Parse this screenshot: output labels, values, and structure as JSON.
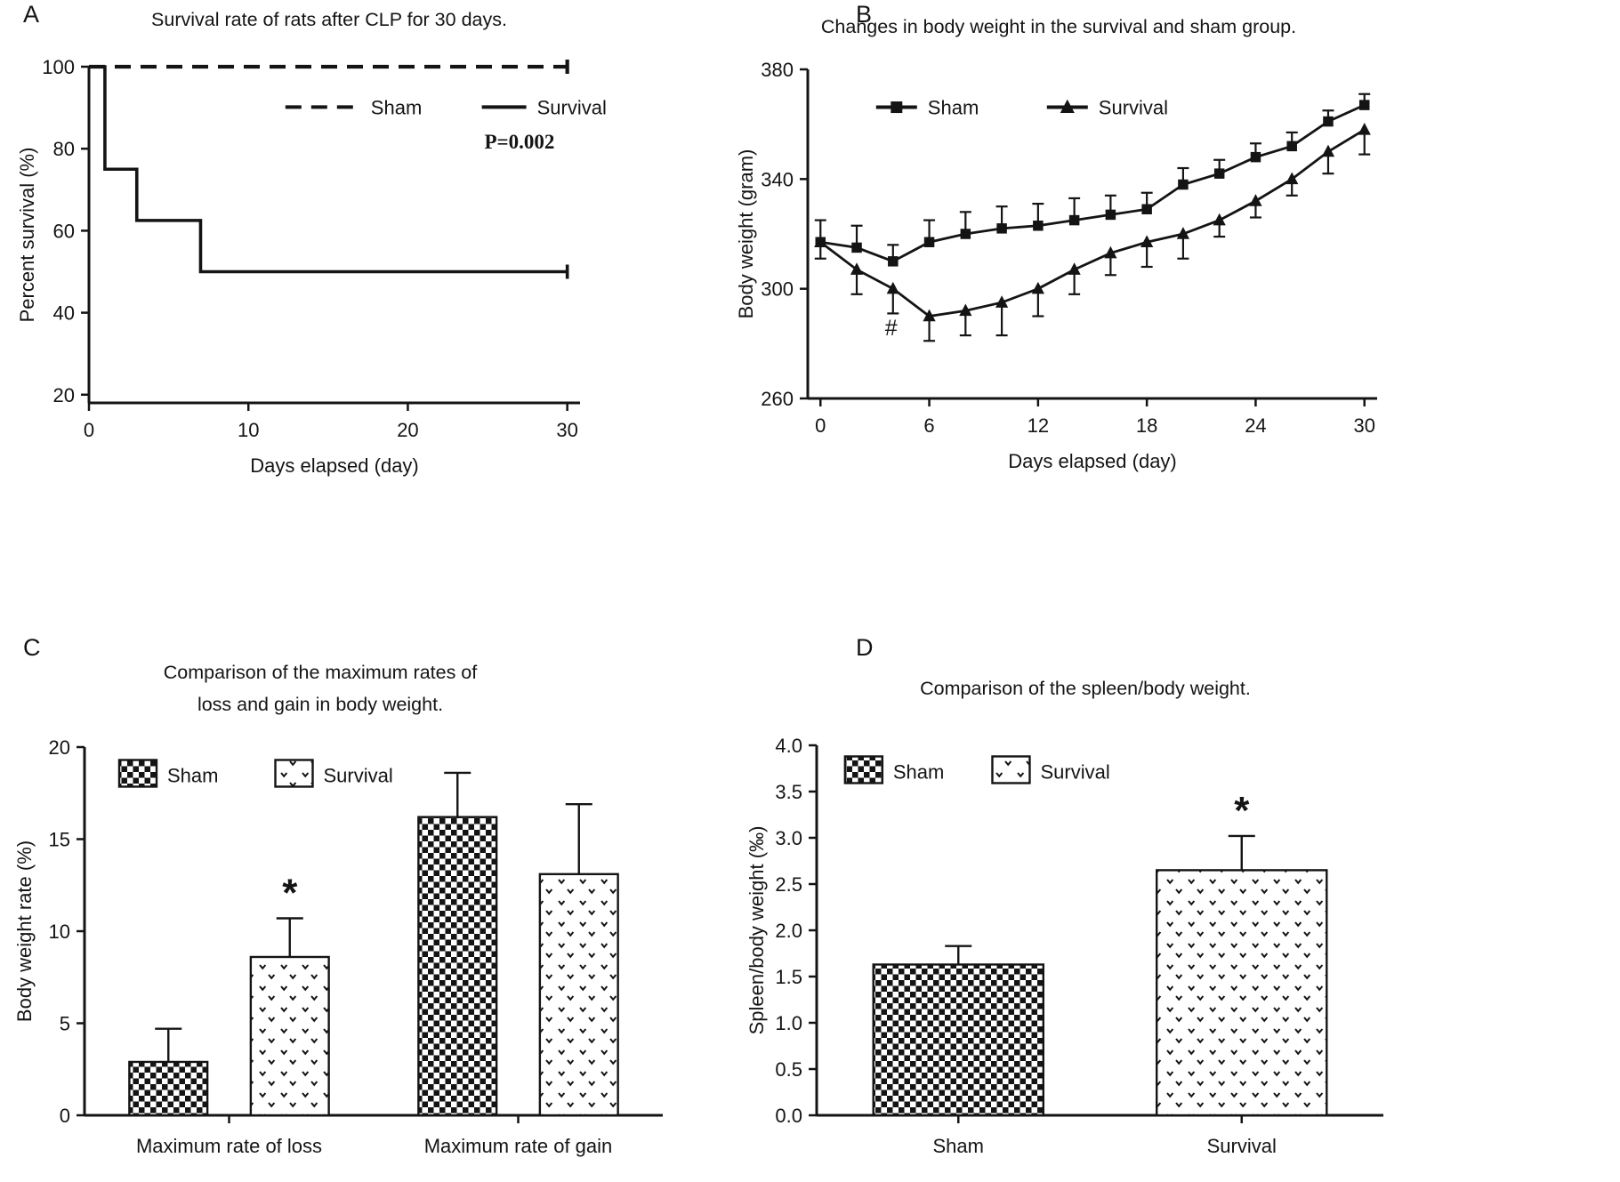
{
  "figure": {
    "background": "#ffffff",
    "ink": "#141414",
    "description": "Four-panel scientific figure (A-D) on CLP sepsis rat study"
  },
  "chart_data": [
    {
      "panel": "A",
      "type": "line",
      "title": "Survival rate of rats after CLP for 30 days.",
      "xlabel": "Days elapsed (day)",
      "ylabel": "Percent survival (%)",
      "xlim": [
        0,
        30.8
      ],
      "ylim": [
        18,
        100
      ],
      "xticks": [
        0,
        10,
        20,
        30
      ],
      "yticks": [
        20,
        40,
        60,
        80,
        100
      ],
      "ytick_labels": [
        "20",
        "40",
        "60",
        "80",
        "100"
      ],
      "grid": false,
      "legend_position": "inside-top",
      "legend": [
        {
          "label": "Sham",
          "dash": "18 11",
          "sw": 84,
          "fx": 0.4,
          "fy": 0.12
        },
        {
          "label": "Survival",
          "dash": "",
          "sw": 50,
          "fx": 0.8,
          "fy": 0.12
        }
      ],
      "annotations": [
        {
          "text": "P=0.002",
          "x": 27,
          "y": 80,
          "bold": true,
          "serif": true,
          "size": 23
        }
      ],
      "series": [
        {
          "name": "Sham",
          "dash": "18 11",
          "width": 4.2,
          "step": false,
          "end_tick": true,
          "x": [
            0,
            30
          ],
          "y": [
            100,
            100
          ]
        },
        {
          "name": "Survival",
          "dash": "",
          "width": 3.6,
          "step": true,
          "end_tick": true,
          "x": [
            0,
            1,
            3,
            7,
            30
          ],
          "y": [
            100,
            75,
            62.5,
            50,
            50
          ]
        }
      ]
    },
    {
      "panel": "B",
      "type": "line",
      "title": "Changes in body weight in the survival and sham group.",
      "xlabel": "Days elapsed (day)",
      "ylabel": "Body weight (gram)",
      "xlim": [
        -0.7,
        30.7
      ],
      "ylim": [
        260,
        380
      ],
      "xticks": [
        0,
        6,
        12,
        18,
        24,
        30
      ],
      "yticks": [
        260,
        300,
        340,
        380
      ],
      "ytick_labels": [
        "260",
        "300",
        "340",
        "380"
      ],
      "grid": false,
      "legend_position": "inside-top",
      "legend": [
        {
          "label": "Sham",
          "marker": "square",
          "dash": "",
          "sw": 46,
          "fx": 0.12,
          "fy": 0.115
        },
        {
          "label": "Survival",
          "marker": "triangle",
          "dash": "",
          "sw": 46,
          "fx": 0.42,
          "fy": 0.115
        }
      ],
      "annotations": [
        {
          "text": "#",
          "x": 3.9,
          "y": 283,
          "bold": false,
          "serif": false,
          "size": 25
        }
      ],
      "series": [
        {
          "name": "Sham",
          "marker": "square",
          "width": 2.8,
          "err_dir": "up",
          "x": [
            0,
            2,
            4,
            6,
            8,
            10,
            12,
            14,
            16,
            18,
            20,
            22,
            24,
            26,
            28,
            30
          ],
          "y": [
            317,
            315,
            310,
            317,
            320,
            322,
            323,
            325,
            327,
            329,
            338,
            342,
            348,
            352,
            361,
            367
          ],
          "err": [
            8,
            8,
            6,
            8,
            8,
            8,
            8,
            8,
            7,
            6,
            6,
            5,
            5,
            5,
            4,
            4
          ]
        },
        {
          "name": "Survival",
          "marker": "triangle",
          "width": 2.8,
          "err_dir": "down",
          "x": [
            0,
            2,
            4,
            6,
            8,
            10,
            12,
            14,
            16,
            18,
            20,
            22,
            24,
            26,
            28,
            30
          ],
          "y": [
            317,
            307,
            300,
            290,
            292,
            295,
            300,
            307,
            313,
            317,
            320,
            325,
            332,
            340,
            350,
            358
          ],
          "err": [
            6,
            9,
            9,
            9,
            9,
            12,
            10,
            9,
            8,
            9,
            9,
            6,
            6,
            6,
            8,
            9
          ]
        }
      ]
    },
    {
      "panel": "C",
      "type": "bar",
      "title": "Comparison of the maximum rates of loss and gain in body weight.",
      "title_lines": [
        "Comparison of the maximum rates of",
        "loss and gain in body weight."
      ],
      "xlabel": "",
      "ylabel": "Body weight rate (%)",
      "ylim": [
        0,
        20
      ],
      "yticks": [
        0,
        5,
        10,
        15,
        20
      ],
      "ytick_labels": [
        "0",
        "5",
        "10",
        "15",
        "20"
      ],
      "grid": false,
      "bar_width": 0.135,
      "bar_gap": 0.075,
      "legend_position": "inside-top-left",
      "legend": [
        {
          "label": "Sham",
          "pattern": "checker",
          "fx": 0.06,
          "fy": 0.035
        },
        {
          "label": "Survival",
          "pattern": "dots",
          "fx": 0.33,
          "fy": 0.035
        }
      ],
      "groups": [
        {
          "label": "Maximum rate of loss",
          "bars": [
            {
              "series": "Sham",
              "pattern": "checker",
              "value": 2.9,
              "error": 1.8,
              "sig": ""
            },
            {
              "series": "Survival",
              "pattern": "dots",
              "value": 8.6,
              "error": 2.1,
              "sig": "*"
            }
          ]
        },
        {
          "label": "Maximum rate of gain",
          "bars": [
            {
              "series": "Sham",
              "pattern": "checker",
              "value": 16.2,
              "error": 2.4,
              "sig": ""
            },
            {
              "series": "Survival",
              "pattern": "dots",
              "value": 13.1,
              "error": 3.8,
              "sig": ""
            }
          ]
        }
      ]
    },
    {
      "panel": "D",
      "type": "bar",
      "title": "Comparison of the spleen/body weight.",
      "title_lines": [
        "Comparison of the spleen/body weight."
      ],
      "xlabel": "",
      "ylabel": "Spleen/body weight (‰)",
      "ylim": [
        0,
        4
      ],
      "yticks": [
        0,
        0.5,
        1,
        1.5,
        2,
        2.5,
        3,
        3.5,
        4
      ],
      "ytick_labels": [
        "0.0",
        "0.5",
        "1.0",
        "1.5",
        "2.0",
        "2.5",
        "3.0",
        "3.5",
        "4.0"
      ],
      "grid": false,
      "bar_width": 0.3,
      "bar_gap": 0.0,
      "legend_position": "inside-top-left",
      "legend": [
        {
          "label": "Sham",
          "pattern": "checker",
          "fx": 0.05,
          "fy": 0.03
        },
        {
          "label": "Survival",
          "pattern": "dots",
          "fx": 0.31,
          "fy": 0.03
        }
      ],
      "groups": [
        {
          "label": "Sham",
          "bars": [
            {
              "series": "Sham",
              "pattern": "checker",
              "value": 1.63,
              "error": 0.2,
              "sig": ""
            }
          ]
        },
        {
          "label": "Survival",
          "bars": [
            {
              "series": "Survival",
              "pattern": "dots",
              "value": 2.65,
              "error": 0.37,
              "sig": "*"
            }
          ]
        }
      ]
    }
  ]
}
